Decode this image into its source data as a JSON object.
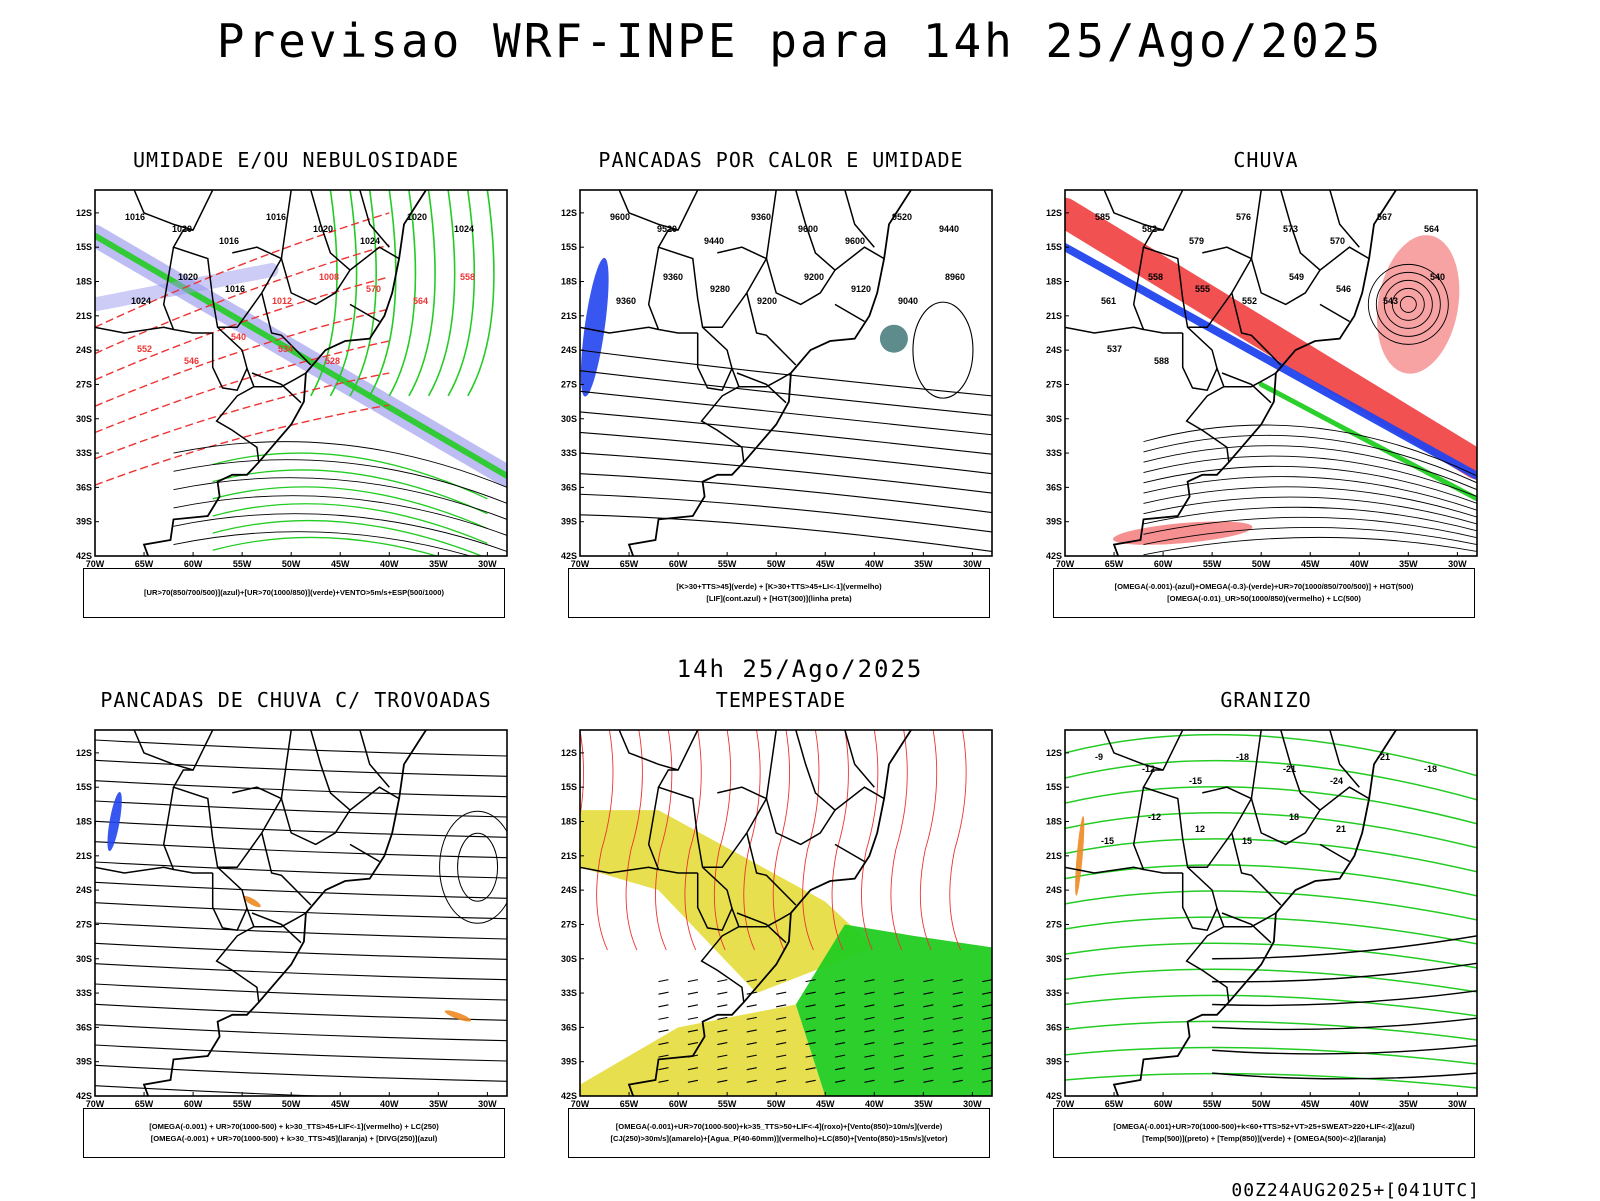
{
  "header": {
    "title": "Previsao WRF-INPE  para 14h 25/Ago/2025",
    "subtitle": "14h 25/Ago/2025",
    "footer": "00Z24AUG2025+[041UTC]"
  },
  "axes": {
    "lat_labels": [
      "12S",
      "15S",
      "18S",
      "21S",
      "24S",
      "27S",
      "30S",
      "33S",
      "36S",
      "39S",
      "42S"
    ],
    "lon_labels": [
      "70W",
      "65W",
      "60W",
      "55W",
      "50W",
      "45W",
      "40W",
      "35W",
      "30W"
    ]
  },
  "panels": [
    {
      "title": "UMIDADE E/OU NEBULOSIDADE",
      "legend": [
        "[UR>70(850/700/500)](azul)+[UR>70(1000/850)](verde)+VENTO>5m/s+ESP(500/1000)"
      ],
      "contour_labels": [
        "1016",
        "1020",
        "1016",
        "1016",
        "1020",
        "1024",
        "1020",
        "1024",
        "1024",
        "1020",
        "1016",
        "1012",
        "1008",
        "570",
        "564",
        "558",
        "552",
        "546",
        "540",
        "534",
        "528"
      ],
      "colors": {
        "blue": "#9999ee",
        "green": "#22cc22",
        "red": "#ee3333"
      }
    },
    {
      "title": "PANCADAS POR CALOR E UMIDADE",
      "legend": [
        "[K>30+TTS>45](verde) + [K>30+TTS>45+LI<-1](vermelho)",
        "[LIF](cont.azul) + [HGT(300)](linha preta)"
      ],
      "contour_labels": [
        "9600",
        "9520",
        "9440",
        "9360",
        "9600",
        "9600",
        "9520",
        "9440",
        "9360",
        "9360",
        "9280",
        "9200",
        "9200",
        "9120",
        "9040",
        "8960"
      ],
      "colors": {
        "blue": "#2244ee",
        "teal": "#1a5a5a"
      }
    },
    {
      "title": "CHUVA",
      "legend": [
        "[OMEGA(-0.001)-(azul)+OMEGA(-0.3)-(verde)+UR>70(1000/850/700/500)] + HGT(500)",
        "[OMEGA(-0.01)_UR>50(1000/850)(vermelho) + LC(500)"
      ],
      "contour_labels": [
        "585",
        "582",
        "579",
        "576",
        "573",
        "570",
        "567",
        "564",
        "561",
        "558",
        "555",
        "552",
        "549",
        "546",
        "543",
        "540",
        "537",
        "588"
      ],
      "colors": {
        "red": "#ee3333",
        "blue": "#2244ee",
        "green": "#22cc22"
      }
    },
    {
      "title": "PANCADAS DE CHUVA C/ TROVOADAS",
      "legend": [
        "[OMEGA(-0.001) + UR>70(1000-500) + k>30_TTS>45+LIF<-1](vermelho) + LC(250)",
        "[OMEGA(-0.001) + UR>70(1000-500) + k>30_TTS>45](laranja) + [DIVG(250)](azul)"
      ],
      "contour_labels": [],
      "colors": {
        "blue": "#2244ee",
        "orange": "#ee8822"
      }
    },
    {
      "title": "TEMPESTADE",
      "legend": [
        "[OMEGA(-0.001)+UR>70(1000-500)+k>35_TTS>50+LIF<-4](roxo)+[Vento(850)>10m/s](verde)",
        "[CJ(250)>30m/s](amarelo)+[Agua_P(40-60mm)](vermelho)+LC(850)+[Vento(850)>15m/s](vetor)"
      ],
      "contour_labels": [],
      "colors": {
        "yellow": "#e6dc3c",
        "green": "#22cc22",
        "red": "#ee3333"
      }
    },
    {
      "title": "GRANIZO",
      "legend": [
        "[OMEGA(-0.001)+UR>70(1000-500)+k<60+TTS>52+VT>25+SWEAT>220+LIF<-2](azul)",
        "[Temp(500)](preto) + [Temp(850)](verde) + [OMEGA(500)<-2](laranja)"
      ],
      "contour_labels": [
        "-9",
        "-12",
        "-15",
        "-18",
        "-21",
        "-24",
        "-21",
        "-18",
        "-15",
        "-12",
        "12",
        "15",
        "18",
        "21"
      ],
      "colors": {
        "green": "#22cc22",
        "orange": "#ee8822"
      }
    }
  ]
}
